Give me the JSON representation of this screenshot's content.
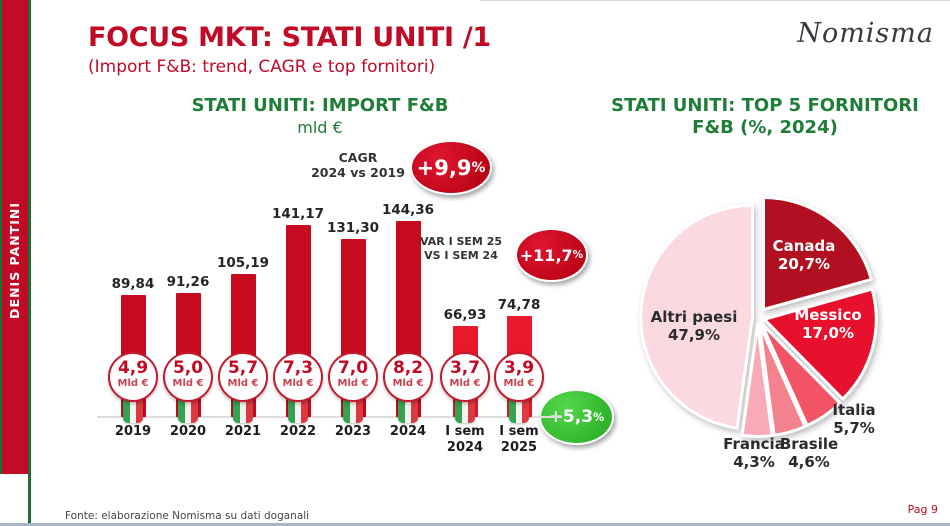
{
  "header": {
    "title": "FOCUS MKT: STATI UNITI /1",
    "subtitle": "(Import F&B: trend, CAGR e top fornitori)"
  },
  "brand": "Nomisma",
  "sidebar_author": "DENIS PANTINI",
  "footer": {
    "source": "Fonte: elaborazione Nomisma su dati doganali",
    "page_label": "Pag 9"
  },
  "colors": {
    "accent_red": "#C10A26",
    "accent_green": "#1E7D36",
    "ribbon_green": "#1E6B33"
  },
  "chart_data": [
    {
      "type": "bar",
      "title": "STATI UNITI: IMPORT F&B",
      "unit_label": "mld €",
      "categories": [
        "2019",
        "2020",
        "2021",
        "2022",
        "2023",
        "2024",
        "I sem 2024",
        "I sem 2025"
      ],
      "cat_lines": [
        [
          "2019"
        ],
        [
          "2020"
        ],
        [
          "2021"
        ],
        [
          "2022"
        ],
        [
          "2023"
        ],
        [
          "2024"
        ],
        [
          "I sem",
          "2024"
        ],
        [
          "I sem",
          "2025"
        ]
      ],
      "values": [
        89.84,
        91.26,
        105.19,
        141.17,
        131.3,
        144.36,
        66.93,
        74.78
      ],
      "value_labels": [
        "89,84",
        "91,26",
        "105,19",
        "141,17",
        "131,30",
        "144,36",
        "66,93",
        "74,78"
      ],
      "badge_values": [
        "4,9",
        "5,0",
        "5,7",
        "7,3",
        "7,0",
        "8,2",
        "3,7",
        "3,9"
      ],
      "badge_unit": "Mld €",
      "bar_color": "#C70B1E",
      "bar_color_semester": "#E8192B",
      "ylim": [
        0,
        160
      ],
      "grid": "baseline only",
      "annotations": [
        {
          "label_lines": [
            "CAGR",
            "2024 vs 2019"
          ],
          "value_main": "+9,9",
          "value_suffix": "%",
          "color": "#C10A26"
        },
        {
          "label_lines": [
            "VAR I SEM 25",
            "VS I SEM 24"
          ],
          "value_main": "+11,7",
          "value_suffix": "%",
          "color": "#C10A26"
        },
        {
          "label_lines": [],
          "value_main": "+5,3",
          "value_suffix": "%",
          "color": "#3BB53B"
        }
      ]
    },
    {
      "type": "pie",
      "title": "STATI UNITI: TOP 5 FORNITORI",
      "title_line2": "F&B (%, 2024)",
      "legend_position": "labels on slices",
      "slices": [
        {
          "label": "Canada",
          "pct": 20.7,
          "pct_label": "20,7%",
          "color": "#B01020",
          "explode": 10,
          "label_color": "#FFFFFF"
        },
        {
          "label": "Messico",
          "pct": 17.0,
          "pct_label": "17,0%",
          "color": "#E8112D",
          "explode": 7,
          "label_color": "#FFFFFF"
        },
        {
          "label": "Italia",
          "pct": 5.7,
          "pct_label": "5,7%",
          "color": "#F25365",
          "explode": 7,
          "label_color": "#2B2B2B"
        },
        {
          "label": "Brasile",
          "pct": 4.6,
          "pct_label": "4,6%",
          "color": "#F5838F",
          "explode": 7,
          "label_color": "#2B2B2B"
        },
        {
          "label": "Francia",
          "pct": 4.3,
          "pct_label": "4,3%",
          "color": "#F8ABB6",
          "explode": 7,
          "label_color": "#2B2B2B"
        },
        {
          "label": "Altri paesi",
          "pct": 47.9,
          "pct_label": "47,9%",
          "color": "#FAD9E0",
          "explode": 5,
          "label_color": "#2B2B2B"
        }
      ]
    }
  ]
}
